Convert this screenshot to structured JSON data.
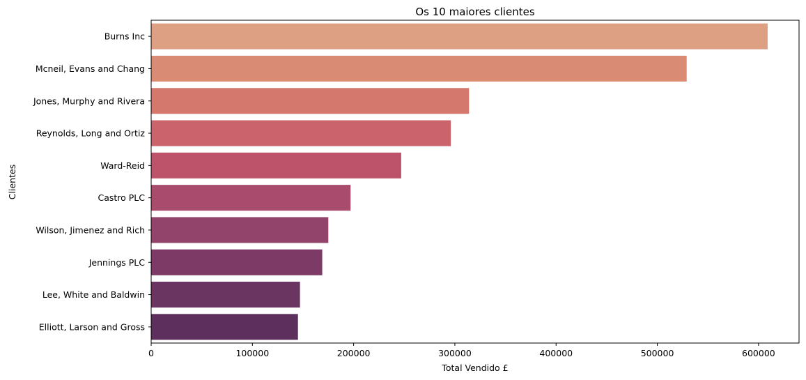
{
  "chart_data": {
    "type": "bar",
    "orientation": "horizontal",
    "title": "Os 10 maiores clientes",
    "xlabel": "Total Vendido £",
    "ylabel": "Clientes",
    "xlim": [
      0,
      640000
    ],
    "xticks": [
      0,
      100000,
      200000,
      300000,
      400000,
      500000,
      600000
    ],
    "grid": false,
    "palette": "flare",
    "categories": [
      "Burns Inc",
      "Mcneil, Evans and Chang",
      "Jones, Murphy and Rivera",
      "Reynolds, Long and Ortiz",
      "Ward-Reid",
      "Castro PLC",
      "Wilson, Jimenez and Rich",
      "Jennings PLC",
      "Lee, White and Baldwin",
      "Elliott, Larson and Gross"
    ],
    "values": [
      609000,
      529000,
      314000,
      296000,
      247000,
      197000,
      175000,
      169000,
      147000,
      145000
    ],
    "colors": [
      "#dea082",
      "#d98b73",
      "#d4786d",
      "#cb636c",
      "#bc536a",
      "#a84b6c",
      "#92446b",
      "#7d3a67",
      "#6a3561",
      "#5c2f5c"
    ]
  }
}
